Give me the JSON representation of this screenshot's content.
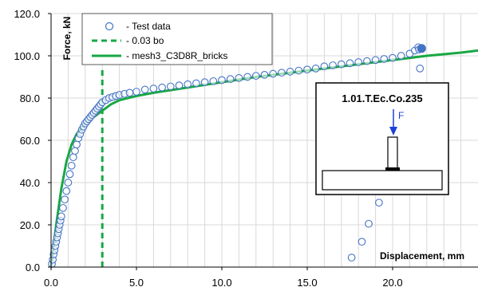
{
  "chart_data": {
    "type": "scatter",
    "xlabel": "Displacement, mm",
    "ylabel": "Force, kN",
    "xlim": [
      0,
      25
    ],
    "ylim": [
      0,
      120
    ],
    "xticks": [
      "0.0",
      "5.0",
      "10.0",
      "15.0",
      "20.0"
    ],
    "yticks": [
      "0.0",
      "20.0",
      "40.0",
      "60.0",
      "80.0",
      "100.0",
      "120.0"
    ],
    "grid": true,
    "legend_placement": "top-left",
    "legend": [
      {
        "label": "- Test data",
        "marker": "circle",
        "color": "#4472c4"
      },
      {
        "label": "- 0.03 bo",
        "marker": "dashed-line",
        "color": "#17a844"
      },
      {
        "label": "- mesh3_C3D8R_bricks",
        "marker": "line",
        "color": "#17a844"
      }
    ],
    "series": [
      {
        "name": "- Test data",
        "kind": "scatter",
        "color": "#4472c4",
        "x": [
          0.05,
          0.1,
          0.15,
          0.2,
          0.25,
          0.3,
          0.35,
          0.4,
          0.45,
          0.5,
          0.55,
          0.6,
          0.7,
          0.8,
          0.9,
          1.0,
          1.1,
          1.2,
          1.3,
          1.4,
          1.5,
          1.6,
          1.7,
          1.8,
          1.9,
          2.0,
          2.1,
          2.2,
          2.3,
          2.4,
          2.5,
          2.6,
          2.7,
          2.8,
          2.9,
          3.0,
          3.2,
          3.4,
          3.6,
          3.8,
          4.0,
          4.3,
          4.6,
          5.0,
          5.5,
          6.0,
          6.5,
          7.0,
          7.5,
          8.0,
          8.5,
          9.0,
          9.5,
          10.0,
          10.5,
          11.0,
          11.5,
          12.0,
          12.5,
          13.0,
          13.5,
          14.0,
          14.5,
          15.0,
          15.5,
          16.0,
          16.5,
          17.0,
          17.5,
          18.0,
          18.5,
          19.0,
          19.5,
          20.0,
          20.5,
          21.0,
          21.3,
          21.5,
          21.55,
          21.6,
          19.2,
          18.6,
          18.2,
          17.6
        ],
        "y": [
          1.5,
          3.5,
          6,
          8,
          10,
          12,
          14,
          16,
          18,
          20,
          22,
          24,
          28,
          32,
          36,
          40,
          44,
          48,
          52,
          55,
          58,
          61,
          63,
          65,
          66.5,
          68,
          69,
          70,
          71,
          72,
          73,
          74,
          75,
          76,
          77,
          78,
          79,
          80,
          80.5,
          81,
          81.5,
          82,
          82.5,
          83,
          84,
          84.5,
          85,
          85.5,
          86,
          86.5,
          87,
          87.5,
          88,
          88.5,
          89,
          89.5,
          90,
          90.5,
          91,
          91.5,
          92,
          92.5,
          93,
          93.5,
          94,
          95,
          95.5,
          96,
          96.5,
          97,
          97.5,
          98,
          98.5,
          99,
          100,
          101,
          102.5,
          104,
          103,
          94,
          30.5,
          20.5,
          12,
          4.5
        ],
        "filled": [
          {
            "x": 21.7,
            "y": 103.5
          }
        ]
      },
      {
        "name": "- 0.03 bo",
        "kind": "vline-dashed",
        "color": "#17a844",
        "x": [
          3.0,
          3.0
        ],
        "y": [
          0,
          95
        ]
      },
      {
        "name": "- mesh3_C3D8R_bricks",
        "kind": "line",
        "color": "#17a844",
        "x": [
          0,
          0.3,
          0.6,
          0.9,
          1.2,
          1.5,
          2.0,
          2.5,
          3.0,
          3.5,
          4.0,
          5.0,
          6.0,
          8.0,
          10.0,
          12.0,
          14.0,
          16.0,
          18.0,
          20.0,
          22.0,
          24.0,
          25.0
        ],
        "y": [
          0,
          20,
          37,
          50,
          58,
          63,
          68,
          71,
          74,
          77,
          79,
          81,
          82.5,
          85,
          87.5,
          90,
          92,
          94,
          96,
          98,
          100,
          101.5,
          102.5
        ]
      }
    ]
  },
  "inset": {
    "title": "1.01.T.Ec.Co.235",
    "force_label": "F"
  },
  "colors": {
    "marker": "#4472c4",
    "fea": "#17a844",
    "arrow": "#1f3fd8",
    "grid": "#d9d9d9",
    "axis": "#000000"
  }
}
